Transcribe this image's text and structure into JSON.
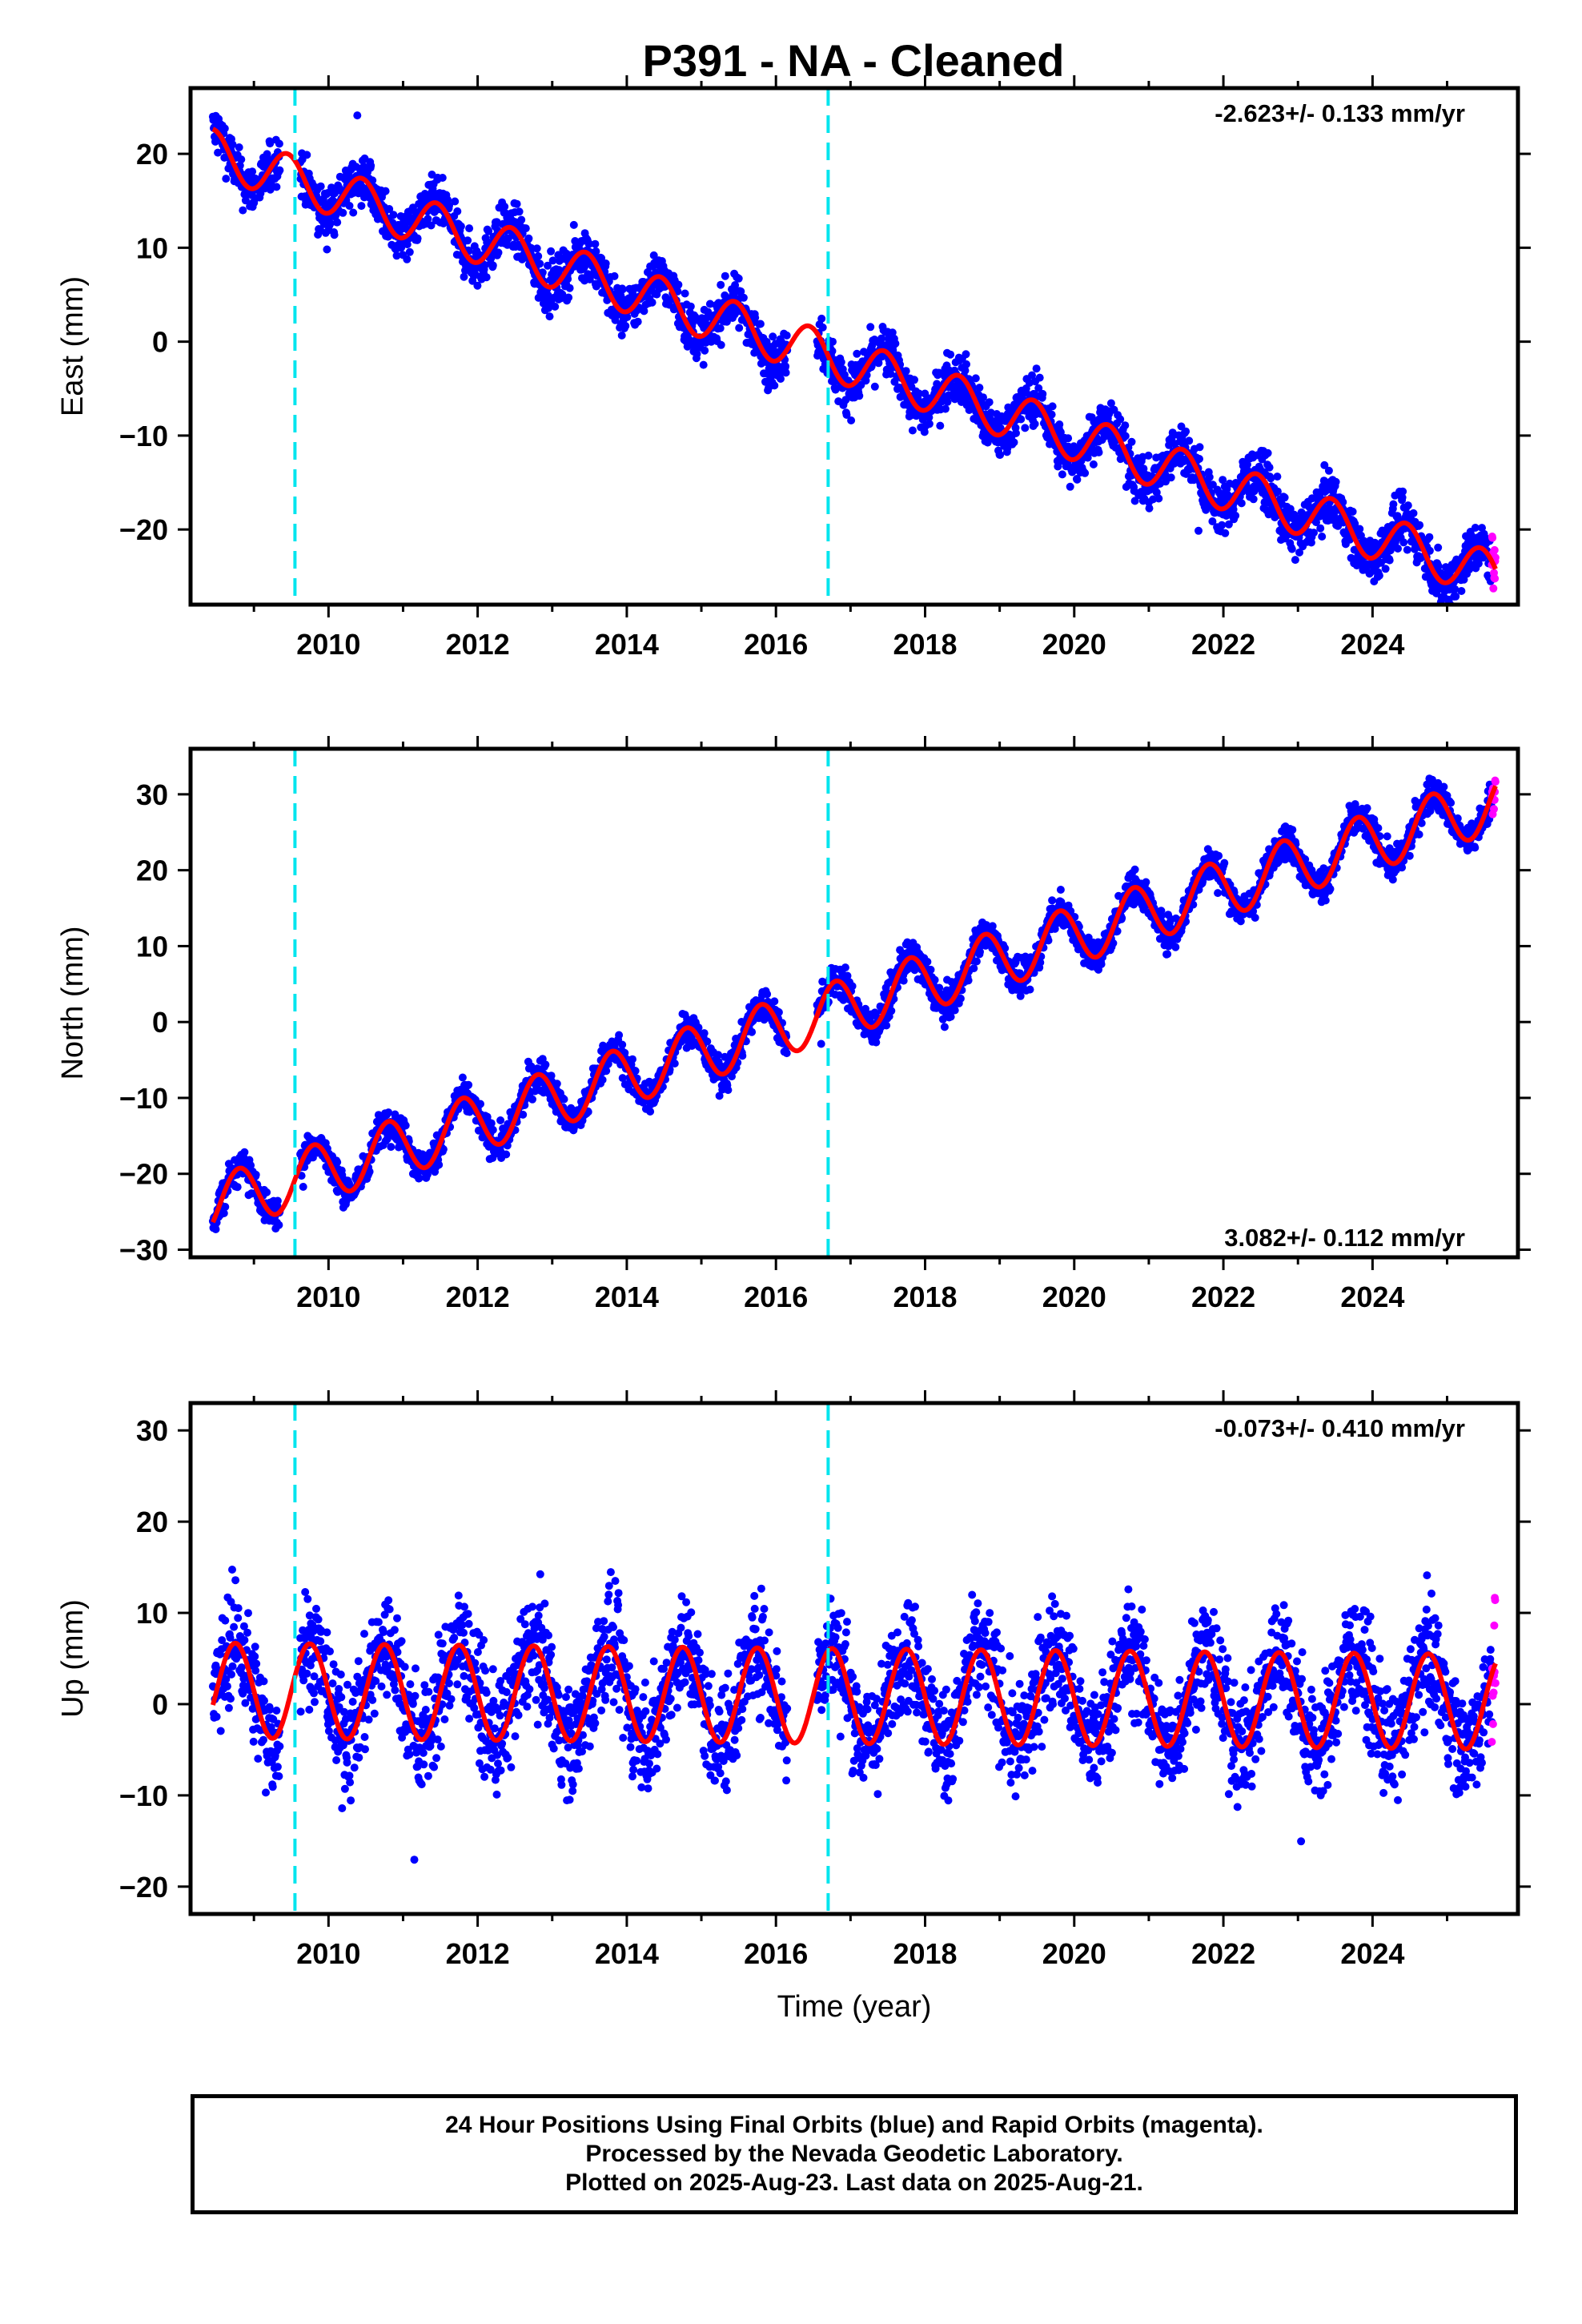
{
  "title": "P391  - NA - Cleaned",
  "footer": {
    "line1": "24 Hour Positions Using Final Orbits (blue) and Rapid Orbits (magenta).",
    "line2": "Processed by the Nevada Geodetic Laboratory.",
    "line3": "Plotted on 2025-Aug-23. Last data on 2025-Aug-21."
  },
  "colors": {
    "final_orbits": "#0000ff",
    "rapid_orbits": "#ff00ff",
    "model_fit": "#ff0000",
    "equipment_change": "#00e5ee"
  },
  "chart_data": [
    {
      "type": "scatter",
      "ylabel": "East (mm)",
      "xlabel": "",
      "rate_label": "-2.623+/- 0.133 mm/yr",
      "rate_position": "top-right",
      "xlim": [
        2008.15,
        2025.95
      ],
      "ylim": [
        -28,
        27
      ],
      "xticks": [
        2010,
        2012,
        2014,
        2016,
        2018,
        2020,
        2022,
        2024
      ],
      "yticks": [
        -20,
        -10,
        0,
        10,
        20
      ],
      "breaks": [
        2009.55,
        2016.7
      ],
      "model": {
        "rate": -2.623,
        "ref_year": 2008.5,
        "offset": 20.0,
        "amp": 2.5,
        "phase": 0.2
      },
      "gaps": [
        [
          2009.35,
          2009.62
        ],
        [
          2016.15,
          2016.55
        ]
      ],
      "noise": 1.3,
      "data_start": 2008.45,
      "rapid_start": 2025.6,
      "data_end": 2025.65
    },
    {
      "type": "scatter",
      "ylabel": "North (mm)",
      "xlabel": "",
      "rate_label": "3.082+/- 0.112 mm/yr",
      "rate_position": "bottom-right",
      "xlim": [
        2008.15,
        2025.95
      ],
      "ylim": [
        -31,
        36
      ],
      "xticks": [
        2010,
        2012,
        2014,
        2016,
        2018,
        2020,
        2022,
        2024
      ],
      "yticks": [
        -30,
        -20,
        -10,
        0,
        10,
        20,
        30
      ],
      "breaks": [
        2009.55,
        2016.7
      ],
      "model": {
        "rate": 3.082,
        "ref_year": 2008.5,
        "offset": -24.0,
        "amp": 3.8,
        "phase": 0.55
      },
      "gaps": [
        [
          2009.35,
          2009.62
        ],
        [
          2016.15,
          2016.55
        ]
      ],
      "noise": 1.1,
      "data_start": 2008.45,
      "rapid_start": 2025.6,
      "data_end": 2025.65
    },
    {
      "type": "scatter",
      "ylabel": "Up (mm)",
      "xlabel": "Time (year)",
      "rate_label": "-0.073+/- 0.410 mm/yr",
      "rate_position": "top-right",
      "xlim": [
        2008.15,
        2025.95
      ],
      "ylim": [
        -23,
        33
      ],
      "xticks": [
        2010,
        2012,
        2014,
        2016,
        2018,
        2020,
        2022,
        2024
      ],
      "yticks": [
        -20,
        -10,
        0,
        10,
        20,
        30
      ],
      "breaks": [
        2009.55,
        2016.7
      ],
      "model": {
        "rate": -0.073,
        "ref_year": 2008.5,
        "offset": 1.5,
        "amp": 5.2,
        "phase": 0.5
      },
      "gaps": [
        [
          2009.35,
          2009.62
        ],
        [
          2016.15,
          2016.55
        ]
      ],
      "noise": 3.0,
      "data_start": 2008.45,
      "rapid_start": 2025.6,
      "data_end": 2025.65
    }
  ]
}
